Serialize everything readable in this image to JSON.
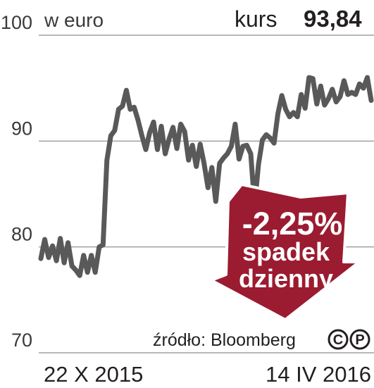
{
  "unit_label": "w euro",
  "price": {
    "label": "kurs",
    "value": "93,84"
  },
  "badge": {
    "change": "-2,25%",
    "line1": "spadek",
    "line2": "dzienny",
    "color": "#9b1b30"
  },
  "source": "źródło: Bloomberg",
  "copyright_marks": [
    "C",
    "P"
  ],
  "colors": {
    "line": "#595959",
    "grid": "#a0a0a0",
    "text": "#231f20"
  },
  "chart_data": {
    "type": "line",
    "title": "",
    "xlabel": "",
    "ylabel": "w euro",
    "ylim": [
      70,
      100
    ],
    "yticks": [
      100,
      90,
      80,
      70
    ],
    "xtick_labels": [
      "22 X 2015",
      "14 IV 2016"
    ],
    "x_range": [
      "2015-10-22",
      "2016-04-14"
    ],
    "grid": true,
    "series": [
      {
        "values": [
          78.9,
          80.7,
          79.0,
          80.1,
          78.7,
          80.8,
          78.5,
          80.4,
          78.2,
          77.8,
          77.3,
          79.2,
          77.6,
          79.2,
          77.6,
          80.0,
          80.2,
          88.2,
          90.5,
          91.0,
          93.0,
          93.3,
          94.8,
          93.0,
          93.2,
          92.0,
          90.5,
          89.2,
          90.8,
          91.8,
          89.2,
          91.4,
          88.8,
          90.2,
          91.3,
          89.3,
          91.6,
          90.9,
          88.2,
          89.6,
          87.6,
          89.7,
          87.9,
          85.6,
          87.5,
          84.3,
          87.9,
          88.4,
          88.8,
          89.5,
          91.6,
          88.3,
          89.5,
          89.6,
          88.8,
          83.9,
          87.8,
          90.1,
          90.6,
          90.3,
          89.8,
          92.6,
          94.3,
          93.0,
          92.3,
          92.7,
          92.3,
          94.4,
          93.1,
          96.0,
          95.9,
          93.5,
          95.2,
          93.4,
          94.0,
          94.9,
          93.7,
          94.2,
          95.7,
          94.4,
          94.6,
          94.4,
          95.4,
          95.0,
          96.0,
          93.84
        ]
      }
    ]
  }
}
